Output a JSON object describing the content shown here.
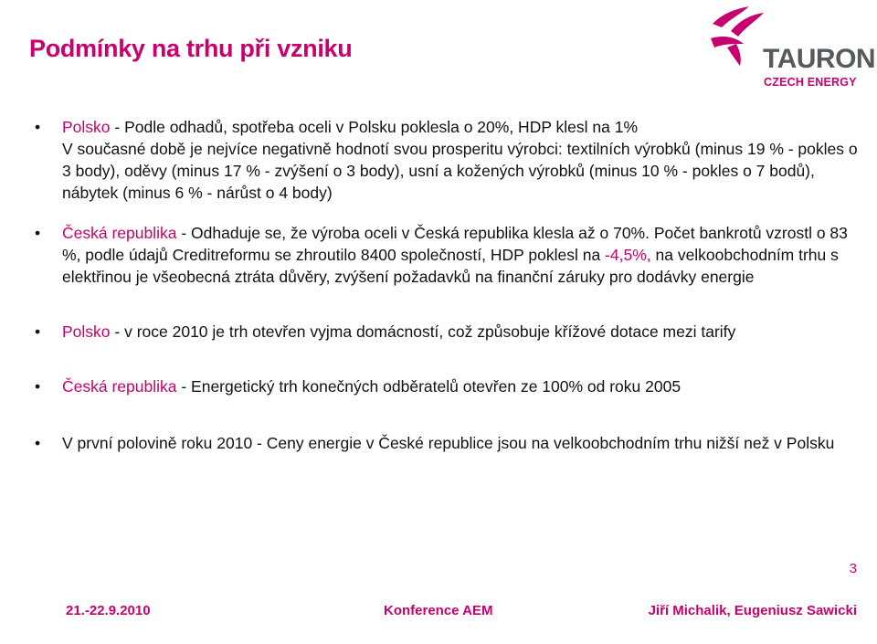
{
  "title": "Podmínky na trhu při vzniku",
  "logo": {
    "word": "TAURON",
    "sub": "CZECH ENERGY",
    "brand_color": "#c8006f",
    "gray_color": "#555a5f"
  },
  "bullet_glyph": "•",
  "bullets": [
    {
      "label": "Polsko",
      "text_line1": " - Podle odhadů, spotřeba oceli v Polsku poklesla o 20%, HDP klesl na 1%",
      "text_rest": "V současné době je nejvíce negativně hodnotí svou prosperitu výrobci: textilních výrobků (minus 19 % - pokles o 3 body), oděvy (minus 17 % - zvýšení o 3 body), usní a kožených výrobků (minus 10 % - pokles o 7 bodů), nábytek (minus 6 % - nárůst o 4 body)"
    },
    {
      "label": "Česká republika",
      "text_a": " - Odhaduje se, že výroba oceli v Česká republika klesla až o 70%. Počet bankrotů vzrostl o 83 %, podle údajů Creditreformu se zhroutilo 8400 společností, HDP poklesl na ",
      "highlight": "-4,5%,",
      "text_b": " na velkoobchodním trhu s elektřinou je všeobecná ztráta důvěry, zvýšení požadavků na finanční záruky pro dodávky energie"
    },
    {
      "label": "Polsko",
      "text": " -  v roce 2010 je trh otevřen vyjma domácností, což způsobuje křížové dotace mezi tarify"
    },
    {
      "label": "Česká republika",
      "text": " - Energetický trh konečných odběratelů otevřen ze 100% od roku 2005"
    },
    {
      "text": "V první polovině roku 2010 - Ceny energie v České republice jsou na velkoobchodním trhu nižší než v Polsku"
    }
  ],
  "page_number": "3",
  "footer": {
    "date": "21.-22.9.2010",
    "event": "Konference AEM",
    "authors": "Jiří Michalik, Eugeniusz Sawicki"
  }
}
